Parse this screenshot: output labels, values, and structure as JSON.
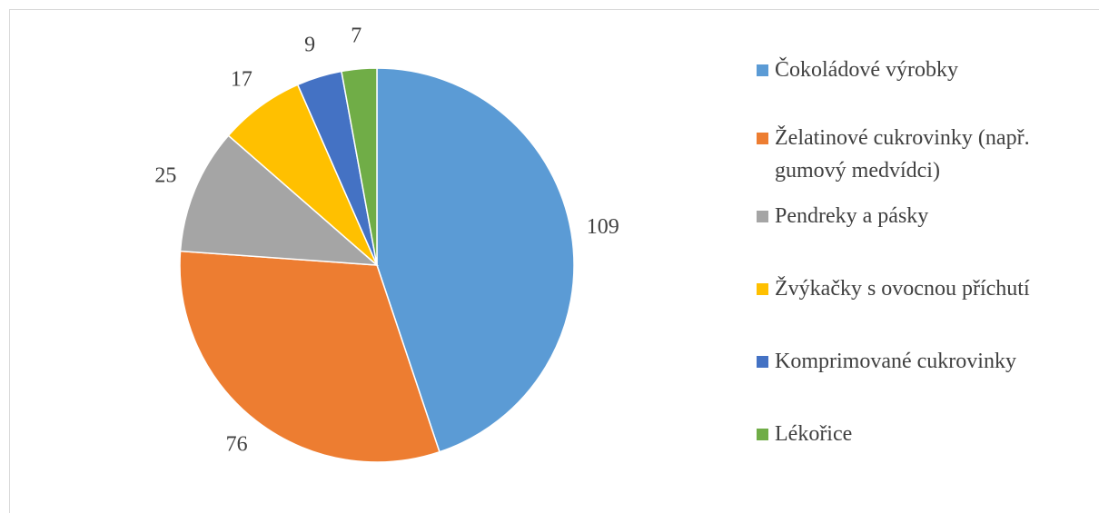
{
  "chart_data": {
    "type": "pie",
    "categories": [
      "Čokoládové výrobky",
      "Želatinové cukrovinky (např. gumový medvídci)",
      "Pendreky a pásky",
      "Žvýkačky s ovocnou příchutí",
      "Komprimované cukrovinky",
      "Lékořice"
    ],
    "values": [
      109,
      76,
      25,
      17,
      9,
      7
    ],
    "colors": [
      "#5b9bd5",
      "#ed7d31",
      "#a5a5a5",
      "#ffc000",
      "#4472c4",
      "#70ad47"
    ],
    "legend": "right"
  }
}
